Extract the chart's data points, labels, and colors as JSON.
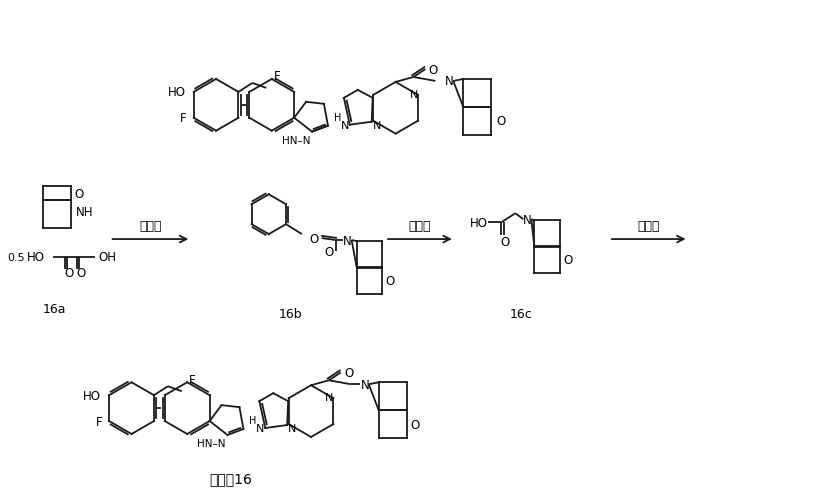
{
  "background_color": "#ffffff",
  "fig_width": 8.14,
  "fig_height": 5.02,
  "dpi": 100,
  "step1_label": "第一步",
  "step2_label": "第二步",
  "step3_label": "第三步",
  "compound_16a": "16a",
  "compound_16b": "16b",
  "compound_16c": "16c",
  "compound_16": "化合畫16",
  "line_color": "#1a1a1a",
  "font_color": "#000000"
}
